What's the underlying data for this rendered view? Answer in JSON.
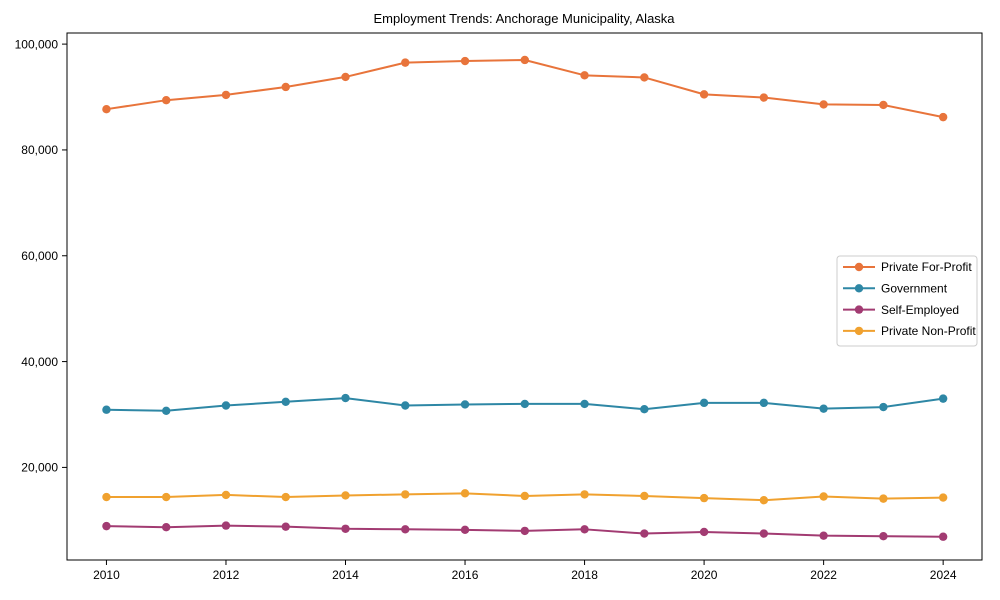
{
  "chart_data": {
    "type": "line",
    "title": "Employment Trends: Anchorage Municipality, Alaska",
    "xlabel": "",
    "ylabel": "",
    "x": [
      2010,
      2011,
      2012,
      2013,
      2014,
      2015,
      2016,
      2017,
      2018,
      2019,
      2020,
      2021,
      2022,
      2023,
      2024
    ],
    "series": [
      {
        "name": "Private For-Profit",
        "color": "#e8743b",
        "values": [
          87700,
          89400,
          90400,
          91900,
          93800,
          96500,
          96800,
          97000,
          94100,
          93700,
          90500,
          89900,
          88600,
          88500,
          86200
        ]
      },
      {
        "name": "Government",
        "color": "#2e87a5",
        "values": [
          30900,
          30700,
          31700,
          32400,
          33100,
          31700,
          31900,
          32000,
          32000,
          31000,
          32200,
          32200,
          31100,
          31400,
          33000
        ]
      },
      {
        "name": "Self-Employed",
        "color": "#a23b72",
        "values": [
          8900,
          8700,
          9000,
          8800,
          8400,
          8300,
          8200,
          8000,
          8300,
          7500,
          7800,
          7500,
          7100,
          7000,
          6900
        ]
      },
      {
        "name": "Private Non-Profit",
        "color": "#f0a12f",
        "values": [
          14400,
          14400,
          14800,
          14400,
          14700,
          14900,
          15100,
          14600,
          14900,
          14600,
          14200,
          13800,
          14500,
          14100,
          14300
        ]
      }
    ],
    "x_tick_values": [
      2010,
      2012,
      2014,
      2016,
      2018,
      2020,
      2022,
      2024
    ],
    "x_tick_labels": [
      "2010",
      "2012",
      "2014",
      "2016",
      "2018",
      "2020",
      "2022",
      "2024"
    ],
    "y_tick_values": [
      20000,
      40000,
      60000,
      80000,
      100000
    ],
    "y_tick_labels": [
      "20,000",
      "40,000",
      "60,000",
      "80,000",
      "100,000"
    ],
    "xlim": [
      2009.34,
      2024.65
    ],
    "ylim": [
      2500,
      102100
    ],
    "grid": false,
    "legend_position": "center right",
    "axis_color": "#000000",
    "legend_border_color": "#cccccc",
    "legend_background": "#ffffff"
  }
}
